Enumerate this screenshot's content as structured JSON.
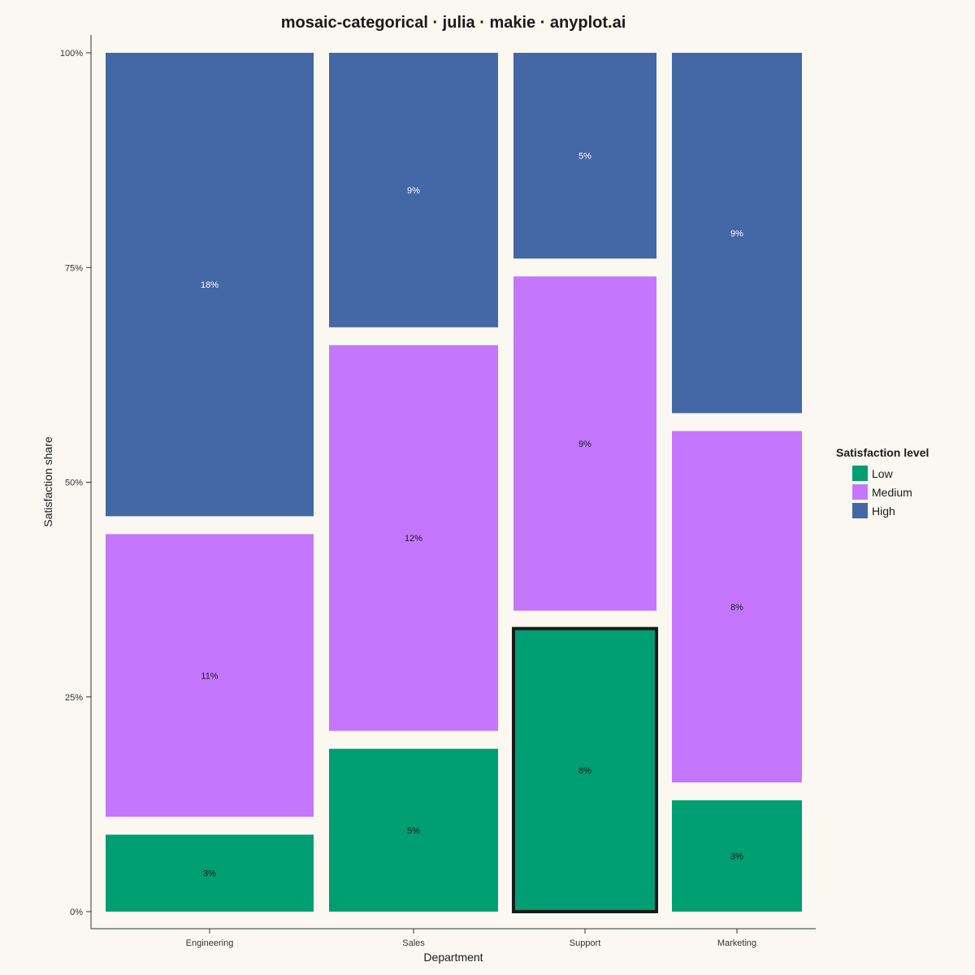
{
  "chart_data": {
    "type": "mosaic",
    "title": "mosaic-categorical · julia · makie · anyplot.ai",
    "xlabel": "Department",
    "ylabel": "Satisfaction share",
    "y_ticks": [
      "0%",
      "25%",
      "50%",
      "75%",
      "100%"
    ],
    "y_tick_values": [
      0,
      25,
      50,
      75,
      100
    ],
    "categories": [
      "Engineering",
      "Sales",
      "Support",
      "Marketing"
    ],
    "column_widths_percent": [
      32,
      26,
      22,
      20
    ],
    "levels": [
      "Low",
      "Medium",
      "High"
    ],
    "colors": {
      "Low": "#009E73",
      "Medium": "#C477FC",
      "High": "#4467A6"
    },
    "shares_percent": {
      "Engineering": [
        10,
        35,
        55
      ],
      "Sales": [
        20,
        47,
        33
      ],
      "Support": [
        34,
        41,
        25
      ],
      "Marketing": [
        14,
        43,
        43
      ]
    },
    "cell_labels": {
      "Engineering": [
        "3%",
        "11%",
        "18%"
      ],
      "Sales": [
        "5%",
        "12%",
        "9%"
      ],
      "Support": [
        "8%",
        "9%",
        "5%"
      ],
      "Marketing": [
        "3%",
        "8%",
        "9%"
      ]
    },
    "highlighted": {
      "category": "Support",
      "level": "Low"
    },
    "legend": {
      "title": "Satisfaction level",
      "entries": [
        "Low",
        "Medium",
        "High"
      ],
      "placement": "right"
    }
  }
}
